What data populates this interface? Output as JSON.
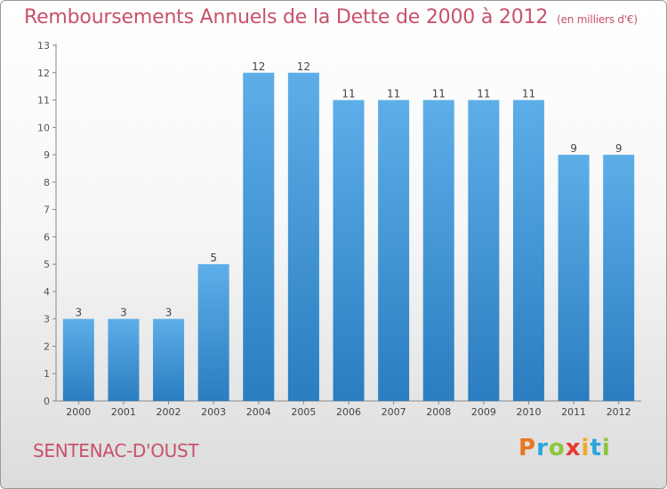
{
  "header": {
    "title": "Remboursements Annuels de la Dette de 2000 à 2012",
    "unit": "(en milliers d'€)"
  },
  "footer": {
    "commune": "SENTENAC-D'OUST",
    "logo_letters": [
      "P",
      "r",
      "o",
      "x",
      "i",
      "t",
      "i"
    ],
    "logo_colors": [
      "#e87722",
      "#2aa6dd",
      "#8cc63f",
      "#e63b2e",
      "#f5a623",
      "#2aa6dd",
      "#8cc63f"
    ]
  },
  "chart_data": {
    "type": "bar",
    "title": "Remboursements Annuels de la Dette de 2000 à 2012",
    "subtitle": "(en milliers d'€)",
    "categories": [
      "2000",
      "2001",
      "2002",
      "2003",
      "2004",
      "2005",
      "2006",
      "2007",
      "2008",
      "2009",
      "2010",
      "2011",
      "2012"
    ],
    "values": [
      3,
      3,
      3,
      5,
      12,
      12,
      11,
      11,
      11,
      11,
      11,
      9,
      9
    ],
    "ylim": [
      0,
      13
    ],
    "yticks": [
      0,
      1,
      2,
      3,
      4,
      5,
      6,
      7,
      8,
      9,
      10,
      11,
      12,
      13
    ],
    "bar_color_top": "#5daee8",
    "bar_color_bottom": "#2a7dc0",
    "grid": false,
    "legend": "none"
  }
}
